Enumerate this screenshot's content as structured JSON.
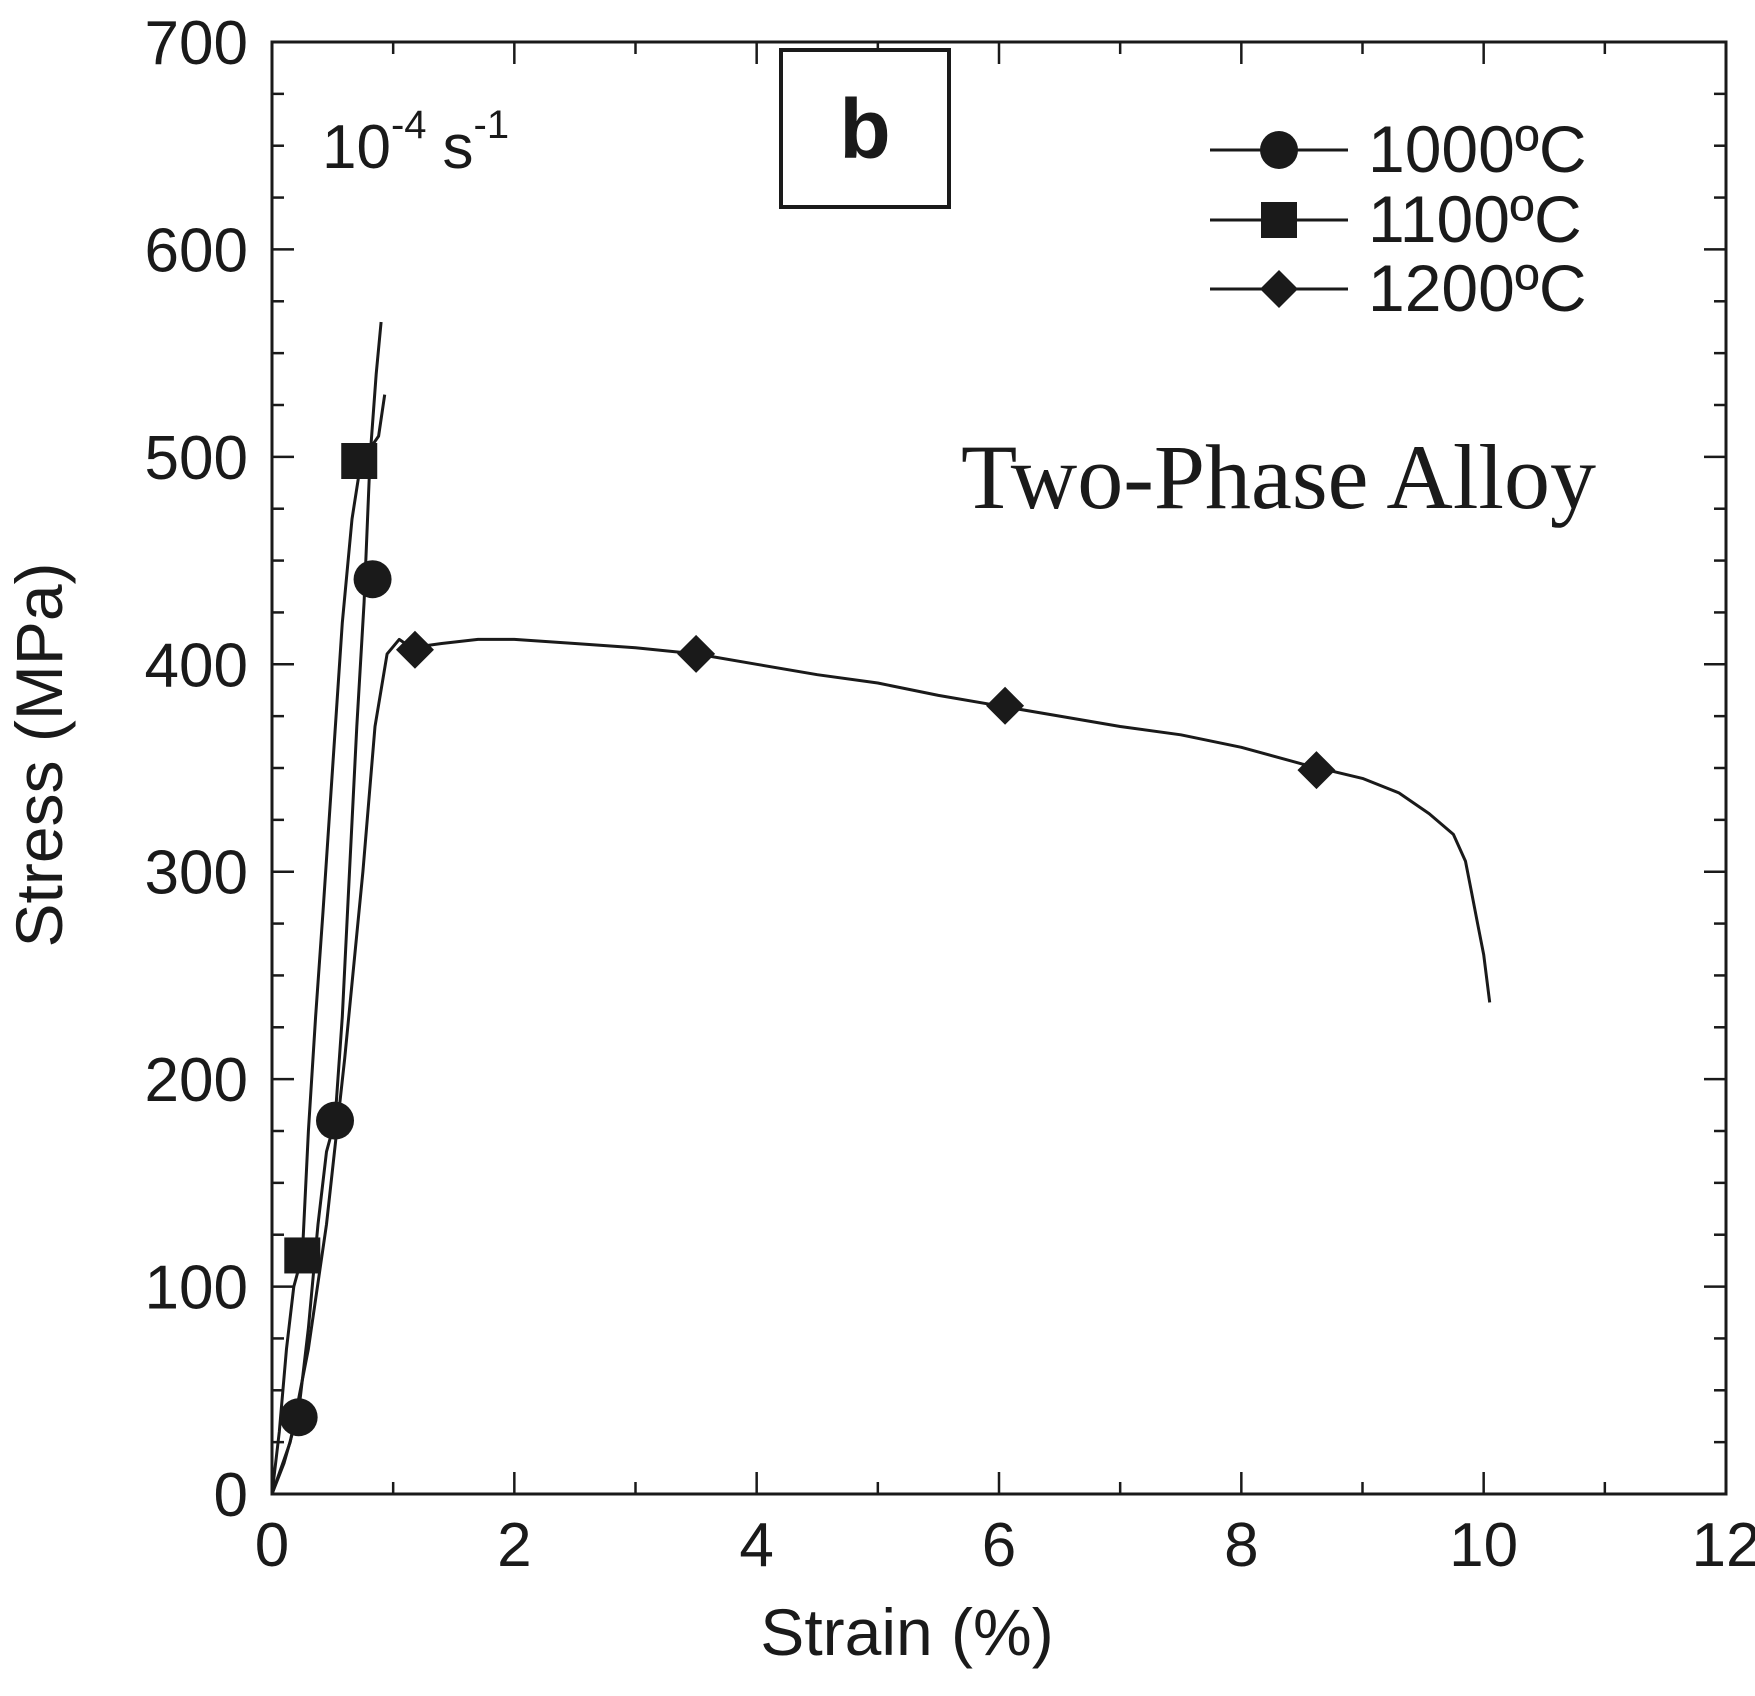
{
  "chart_data": {
    "type": "line",
    "panel_label": "b",
    "strain_rate": {
      "base": "10",
      "base_exp": "-4",
      "unit": "s",
      "unit_exp": "-1"
    },
    "annotation": "Two-Phase Alloy",
    "xlabel": "Strain (%)",
    "ylabel": "Stress (MPa)",
    "xlim": [
      0,
      12
    ],
    "ylim": [
      0,
      700
    ],
    "xticks": [
      0,
      2,
      4,
      6,
      8,
      10,
      12
    ],
    "yticks": [
      0,
      100,
      200,
      300,
      400,
      500,
      600,
      700
    ],
    "xtick_labels": [
      "0",
      "2",
      "4",
      "6",
      "8",
      "10",
      "12"
    ],
    "ytick_labels": [
      "0",
      "100",
      "200",
      "300",
      "400",
      "500",
      "600",
      "700"
    ],
    "grid": false,
    "legend_position": "top-right",
    "series": [
      {
        "name": "1000ºC",
        "marker": "circle",
        "color": "#1a1a1a",
        "x": [
          0,
          0.1,
          0.22,
          0.3,
          0.38,
          0.45,
          0.52,
          0.58,
          0.64,
          0.7,
          0.76,
          0.81,
          0.86,
          0.9
        ],
        "y": [
          0,
          15,
          40,
          80,
          130,
          165,
          180,
          230,
          300,
          370,
          430,
          500,
          540,
          565
        ],
        "markers_x": [
          0.22,
          0.52,
          0.83
        ],
        "markers_y": [
          37,
          180,
          441
        ]
      },
      {
        "name": "1100ºC",
        "marker": "square",
        "color": "#1a1a1a",
        "x": [
          0,
          0.06,
          0.12,
          0.18,
          0.25,
          0.3,
          0.36,
          0.42,
          0.5,
          0.58,
          0.66,
          0.74,
          0.82,
          0.88,
          0.93
        ],
        "y": [
          0,
          30,
          70,
          100,
          115,
          175,
          230,
          280,
          350,
          420,
          470,
          500,
          505,
          510,
          530
        ],
        "markers_x": [
          0.25,
          0.72
        ],
        "markers_y": [
          115,
          498
        ]
      },
      {
        "name": "1200ºC",
        "marker": "diamond",
        "color": "#1a1a1a",
        "x": [
          0,
          0.15,
          0.3,
          0.45,
          0.6,
          0.75,
          0.85,
          0.95,
          1.05,
          1.15,
          1.4,
          1.7,
          2.0,
          2.5,
          3.0,
          3.5,
          4.0,
          4.5,
          5.0,
          5.5,
          6.0,
          6.5,
          7.0,
          7.5,
          8.0,
          8.5,
          9.0,
          9.3,
          9.55,
          9.75,
          9.85,
          9.9,
          9.95,
          10.0,
          10.05
        ],
        "y": [
          0,
          25,
          70,
          130,
          210,
          300,
          370,
          405,
          412,
          408,
          410,
          412,
          412,
          410,
          408,
          405,
          400,
          395,
          391,
          385,
          380,
          375,
          370,
          366,
          360,
          352,
          345,
          338,
          328,
          318,
          305,
          290,
          275,
          260,
          237
        ],
        "markers_x": [
          1.18,
          3.5,
          6.05,
          8.62
        ],
        "markers_y": [
          407,
          405,
          380,
          349
        ]
      }
    ]
  }
}
